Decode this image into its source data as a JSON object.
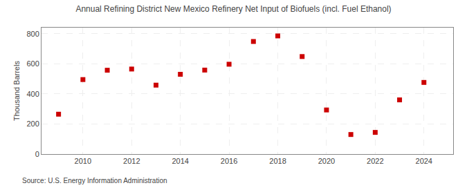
{
  "chart_data": {
    "type": "scatter",
    "title": "Annual Refining District New Mexico Refinery Net Input of Biofuels (incl. Fuel Ethanol)",
    "ylabel": "Thousand Barrels",
    "annotation": "Source: U.S. Energy Information Administration",
    "x": [
      2009,
      2010,
      2011,
      2012,
      2013,
      2014,
      2015,
      2016,
      2017,
      2018,
      2019,
      2020,
      2021,
      2022,
      2023,
      2024
    ],
    "values": [
      265,
      495,
      557,
      565,
      458,
      530,
      558,
      597,
      748,
      785,
      648,
      293,
      130,
      144,
      360,
      476
    ],
    "color": "#cc0000",
    "marker": "square",
    "xlim": [
      2008.3,
      2025.2
    ],
    "ylim": [
      0,
      840
    ],
    "xticks": [
      2010,
      2012,
      2014,
      2016,
      2018,
      2020,
      2022,
      2024
    ],
    "yticks": [
      0,
      200,
      400,
      600,
      800
    ],
    "grid": true
  }
}
